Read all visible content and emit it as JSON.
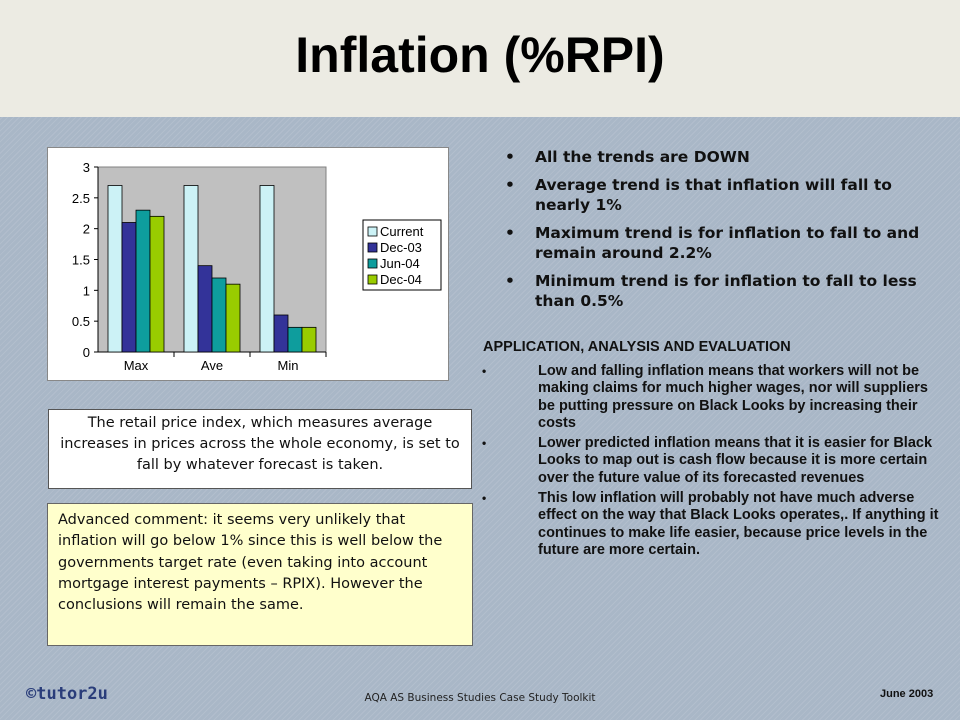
{
  "title": "Inflation (%RPI)",
  "bullets": [
    "All the trends are DOWN",
    "Average trend is that inflation will fall to nearly 1%",
    "Maximum trend is for inflation to fall to and remain around 2.2%",
    "Minimum trend is for inflation to fall to less than 0.5%"
  ],
  "application": {
    "heading": "APPLICATION, ANALYSIS AND EVALUATION",
    "items": [
      "Low and falling inflation means that workers will not be making claims for much higher wages, nor will suppliers be putting pressure on Black Looks by increasing their costs",
      "Lower predicted inflation means that it is easier for Black Looks to map out is cash flow because it is more certain over the future value of its forecasted revenues",
      "This low inflation will probably not have much adverse effect on the way that Black Looks operates,. If anything it continues to make life easier, because price levels in the future are more certain."
    ]
  },
  "rpi_note": "The retail price index, which measures average increases in prices across the whole economy, is set to fall by whatever forecast is taken.",
  "advanced_comment": "Advanced comment:  it seems very unlikely that inflation will go below 1% since this is well below the governments target rate (even taking into account mortgage interest payments – RPIX).  However the conclusions will remain the same.",
  "footer": {
    "brand": "©tutor2u",
    "center": "AQA AS Business  Studies  Case Study  Toolkit",
    "date": "June 2003"
  },
  "chart_data": {
    "type": "bar",
    "categories": [
      "Max",
      "Ave",
      "Min"
    ],
    "series": [
      {
        "name": "Current",
        "values": [
          2.7,
          2.7,
          2.7
        ],
        "color": "#ccf2f6"
      },
      {
        "name": "Dec-03",
        "values": [
          2.1,
          1.4,
          0.6
        ],
        "color": "#333399"
      },
      {
        "name": "Jun-04",
        "values": [
          2.3,
          1.2,
          0.4
        ],
        "color": "#0e9d9d"
      },
      {
        "name": "Dec-04",
        "values": [
          2.2,
          1.1,
          0.4
        ],
        "color": "#99cc00"
      }
    ],
    "ylim": [
      0,
      3
    ],
    "yticks": [
      "0",
      "0.5",
      "1",
      "1.5",
      "2",
      "2.5",
      "3"
    ],
    "legend": "right",
    "grid": false,
    "plot_background": "#c0c0c0"
  }
}
